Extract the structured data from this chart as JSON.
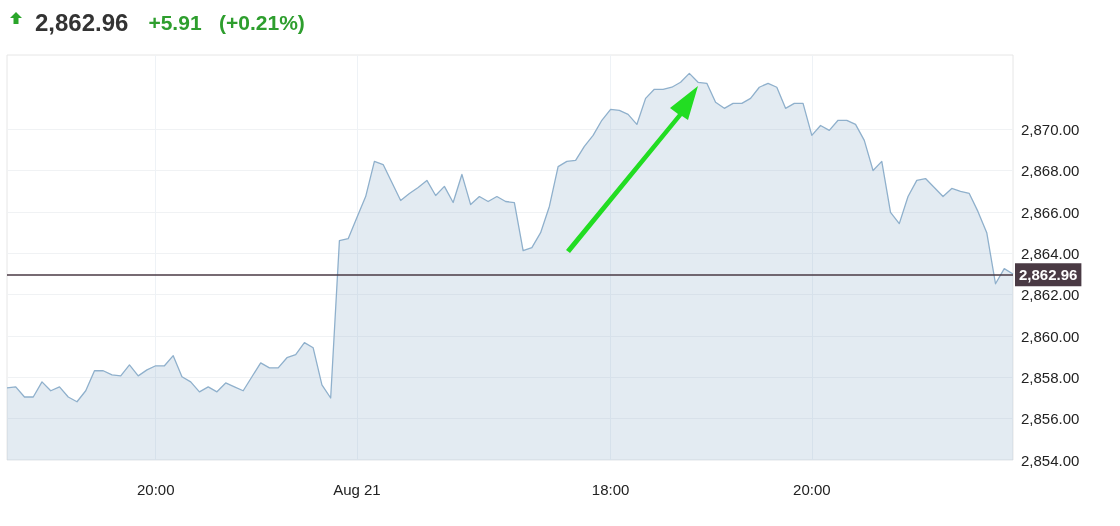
{
  "chart_data": {
    "type": "area",
    "title": "2,862.96",
    "subtitle": "+5.91   (+0.21%)",
    "categories": [
      null,
      null,
      null,
      null,
      null,
      null,
      null,
      null,
      null,
      null,
      null,
      null,
      null,
      null,
      null,
      null,
      null,
      "20:00",
      null,
      null,
      null,
      null,
      null,
      null,
      null,
      null,
      null,
      null,
      null,
      null,
      null,
      null,
      null,
      null,
      null,
      null,
      null,
      null,
      null,
      null,
      "Aug 21",
      null,
      null,
      null,
      null,
      null,
      null,
      null,
      null,
      null,
      null,
      null,
      null,
      null,
      null,
      null,
      null,
      null,
      null,
      null,
      null,
      null,
      null,
      null,
      null,
      null,
      null,
      null,
      null,
      "18:00",
      null,
      null,
      null,
      null,
      null,
      null,
      null,
      null,
      null,
      null,
      null,
      null,
      null,
      null,
      null,
      null,
      null,
      null,
      null,
      null,
      null,
      null,
      "20:00",
      null,
      null,
      null,
      null,
      null,
      null,
      null,
      null,
      null,
      null,
      null,
      null,
      null,
      null,
      null,
      null,
      null,
      null,
      null,
      null,
      null,
      null,
      null
    ],
    "series": [
      {
        "color": "#8fb0cc",
        "values": [
          2857.49,
          2857.54,
          2857.05,
          2857.05,
          2857.78,
          2857.35,
          2857.54,
          2857.05,
          2856.82,
          2857.35,
          2858.32,
          2858.32,
          2858.12,
          2858.07,
          2858.6,
          2858.07,
          2858.36,
          2858.56,
          2858.56,
          2859.05,
          2858.03,
          2857.78,
          2857.3,
          2857.54,
          2857.3,
          2857.73,
          2857.54,
          2857.35,
          2858.03,
          2858.7,
          2858.46,
          2858.46,
          2858.95,
          2859.1,
          2859.68,
          2859.43,
          2857.64,
          2857.0,
          2864.62,
          2864.71,
          2865.73,
          2866.75,
          2868.45,
          2868.3,
          2867.43,
          2866.56,
          2866.9,
          2867.19,
          2867.53,
          2866.8,
          2867.24,
          2866.46,
          2867.82,
          2866.36,
          2866.75,
          2866.51,
          2866.75,
          2866.51,
          2866.46,
          2864.13,
          2864.28,
          2865.0,
          2866.27,
          2868.2,
          2868.45,
          2868.5,
          2869.18,
          2869.71,
          2870.44,
          2870.97,
          2870.92,
          2870.73,
          2870.24,
          2871.5,
          2871.94,
          2871.94,
          2872.04,
          2872.28,
          2872.71,
          2872.28,
          2872.23,
          2871.31,
          2871.02,
          2871.26,
          2871.26,
          2871.5,
          2872.04,
          2872.23,
          2872.04,
          2871.02,
          2871.26,
          2871.26,
          2869.71,
          2870.19,
          2869.95,
          2870.44,
          2870.44,
          2870.24,
          2869.47,
          2868.01,
          2868.45,
          2865.98,
          2865.44,
          2866.75,
          2867.53,
          2867.62,
          2867.19,
          2866.75,
          2867.14,
          2867.0,
          2866.9,
          2866.02,
          2865.0,
          2862.53,
          2863.26,
          2863.0
        ]
      }
    ],
    "ylim": [
      2854,
      2873.6
    ],
    "yticks": [
      {
        "value": 2854,
        "label": "2,854.00"
      },
      {
        "value": 2856,
        "label": "2,856.00"
      },
      {
        "value": 2858,
        "label": "2,858.00"
      },
      {
        "value": 2860,
        "label": "2,860.00"
      },
      {
        "value": 2862,
        "label": "2,862.00"
      },
      {
        "value": 2864,
        "label": "2,864.00"
      },
      {
        "value": 2866,
        "label": "2,866.00"
      },
      {
        "value": 2868,
        "label": "2,868.00"
      },
      {
        "value": 2870,
        "label": "2,870.00"
      }
    ],
    "ref_lines": [
      {
        "axis": "y",
        "value": 2862.96,
        "label": "2,862.96",
        "color": "#4a3a44"
      }
    ],
    "grid": true,
    "marker": "none",
    "line_style": "solid"
  }
}
